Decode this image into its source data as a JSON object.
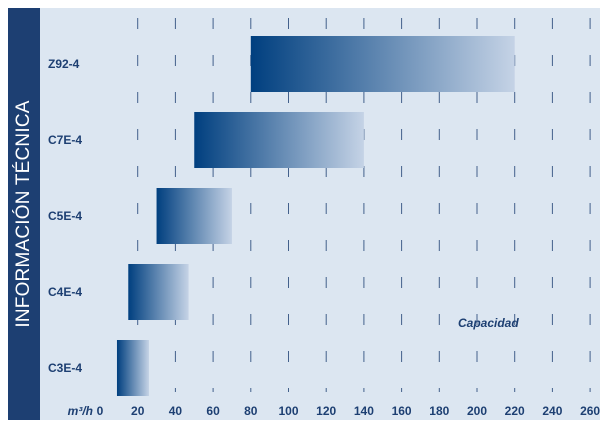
{
  "sidebar": {
    "title": "INFORMACIÓN TÉCNICA"
  },
  "colors": {
    "bar_dark": "#003f7f",
    "bar_light": "#c5d3e6",
    "plot_bg": "#dce6f1",
    "sidebar_bg": "#1d3f72",
    "grid": "#1d3f72"
  },
  "chart_data": {
    "type": "bar",
    "orientation": "horizontal",
    "categories": [
      "Z92-4",
      "C7E-4",
      "C5E-4",
      "C4E-4",
      "C3E-4"
    ],
    "ranges": [
      [
        80,
        220
      ],
      [
        50,
        140
      ],
      [
        30,
        70
      ],
      [
        15,
        47
      ],
      [
        9,
        26
      ]
    ],
    "x_ticks": [
      0,
      20,
      40,
      60,
      80,
      100,
      120,
      140,
      160,
      180,
      200,
      220,
      240,
      260
    ],
    "xlim": [
      0,
      270
    ],
    "x_unit_label": "m³/h",
    "annotation": "Capacidad",
    "grid": "vertical-dashed"
  }
}
